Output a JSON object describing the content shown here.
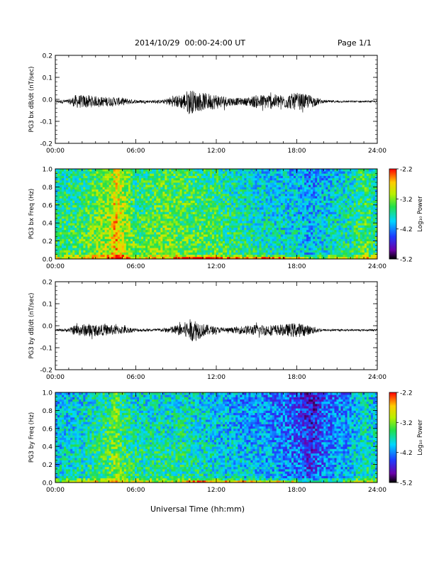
{
  "header": {
    "title": "2014/10/29  00:00-24:00 UT",
    "page_label": "Page 1/1"
  },
  "xaxis_label": "Universal Time (hh:mm)",
  "chart_data": [
    {
      "type": "line",
      "ylabel": "PG3 bx dB/dt (nT/sec)",
      "xlim": [
        0,
        24
      ],
      "ylim": [
        -0.2,
        0.2
      ],
      "yticks": [
        "0.2",
        "0.1",
        "0.0",
        "-0.1",
        "-0.2"
      ],
      "yticks_values": [
        0.2,
        0.1,
        0.0,
        -0.1,
        -0.2
      ],
      "xticks": [
        "00:00",
        "06:00",
        "12:00",
        "18:00",
        "24:00"
      ],
      "baseline": -0.01,
      "envelope": {
        "hours": [
          0,
          1,
          1.5,
          2.5,
          3,
          4,
          5,
          6,
          7,
          8,
          8.5,
          9.5,
          10,
          10.5,
          11,
          12,
          13,
          14,
          15,
          16,
          17,
          18,
          19,
          20,
          22,
          24
        ],
        "amplitude": [
          0.006,
          0.01,
          0.03,
          0.03,
          0.022,
          0.022,
          0.018,
          0.008,
          0.006,
          0.008,
          0.02,
          0.035,
          0.06,
          0.045,
          0.04,
          0.035,
          0.02,
          0.015,
          0.03,
          0.035,
          0.03,
          0.04,
          0.03,
          0.006,
          0.004,
          0.004
        ]
      }
    },
    {
      "type": "heatmap",
      "ylabel": "PG3 bx Freq (Hz)",
      "xlim": [
        0,
        24
      ],
      "ylim": [
        0,
        1
      ],
      "yticks": [
        "1.0",
        "0.8",
        "0.6",
        "0.4",
        "0.2",
        "0.0"
      ],
      "yticks_values": [
        1.0,
        0.8,
        0.6,
        0.4,
        0.2,
        0.0
      ],
      "xticks": [
        "00:00",
        "06:00",
        "12:00",
        "18:00",
        "24:00"
      ],
      "colorbar": {
        "label": "Log₁₀ Power",
        "ticks": [
          "-2.2",
          "-3.2",
          "-4.2",
          "-5.2"
        ],
        "ticks_values": [
          -2.2,
          -3.2,
          -4.2,
          -5.2
        ],
        "range": [
          -5.2,
          -2.2
        ]
      },
      "profile_hours": [
        0,
        2,
        4,
        4.5,
        5,
        6,
        8,
        10,
        12,
        14,
        16,
        18,
        19,
        20,
        22,
        23,
        24
      ],
      "profile_log_power": [
        -3.5,
        -3.4,
        -3.0,
        -2.6,
        -2.9,
        -3.4,
        -3.2,
        -3.3,
        -3.4,
        -3.6,
        -3.7,
        -3.8,
        -4.0,
        -3.8,
        -3.6,
        -3.3,
        -3.6
      ],
      "low_freq_band_hours": [
        9,
        18.5
      ]
    },
    {
      "type": "line",
      "ylabel": "PG3 by dB/dt (nT/sec)",
      "xlim": [
        0,
        24
      ],
      "ylim": [
        -0.2,
        0.2
      ],
      "yticks": [
        "0.2",
        "0.1",
        "0.0",
        "-0.1",
        "-0.2"
      ],
      "yticks_values": [
        0.2,
        0.1,
        0.0,
        -0.1,
        -0.2
      ],
      "xticks": [
        "00:00",
        "06:00",
        "12:00",
        "18:00",
        "24:00"
      ],
      "baseline": -0.02,
      "envelope": {
        "hours": [
          0,
          1,
          1.5,
          2.5,
          3,
          4,
          5,
          6,
          7,
          8,
          8.5,
          9.5,
          10,
          10.5,
          11,
          12,
          13,
          14,
          15,
          16,
          17,
          18,
          19,
          20,
          22,
          24
        ],
        "amplitude": [
          0.004,
          0.008,
          0.025,
          0.03,
          0.025,
          0.025,
          0.018,
          0.008,
          0.006,
          0.008,
          0.015,
          0.03,
          0.05,
          0.05,
          0.03,
          0.015,
          0.01,
          0.02,
          0.025,
          0.025,
          0.025,
          0.035,
          0.02,
          0.005,
          0.004,
          0.004
        ]
      }
    },
    {
      "type": "heatmap",
      "ylabel": "PG3 by Freq (Hz)",
      "xlim": [
        0,
        24
      ],
      "ylim": [
        0,
        1
      ],
      "yticks": [
        "1.0",
        "0.8",
        "0.6",
        "0.4",
        "0.2",
        "0.0"
      ],
      "yticks_values": [
        1.0,
        0.8,
        0.6,
        0.4,
        0.2,
        0.0
      ],
      "xticks": [
        "00:00",
        "06:00",
        "12:00",
        "18:00",
        "24:00"
      ],
      "colorbar": {
        "label": "Log₁₀ Power",
        "ticks": [
          "-2.2",
          "-3.2",
          "-4.2",
          "-5.2"
        ],
        "ticks_values": [
          -2.2,
          -3.2,
          -4.2,
          -5.2
        ],
        "range": [
          -5.2,
          -2.2
        ]
      },
      "profile_hours": [
        0,
        2,
        4,
        4.5,
        5,
        6,
        8,
        10,
        12,
        14,
        16,
        18,
        19,
        20,
        22,
        23,
        24
      ],
      "profile_log_power": [
        -3.8,
        -3.7,
        -3.4,
        -3.1,
        -3.4,
        -3.6,
        -3.6,
        -3.6,
        -3.8,
        -3.9,
        -4.0,
        -4.2,
        -4.5,
        -4.2,
        -3.9,
        -3.6,
        -3.8
      ],
      "low_freq_band_hours": [
        9.5,
        18
      ]
    }
  ]
}
